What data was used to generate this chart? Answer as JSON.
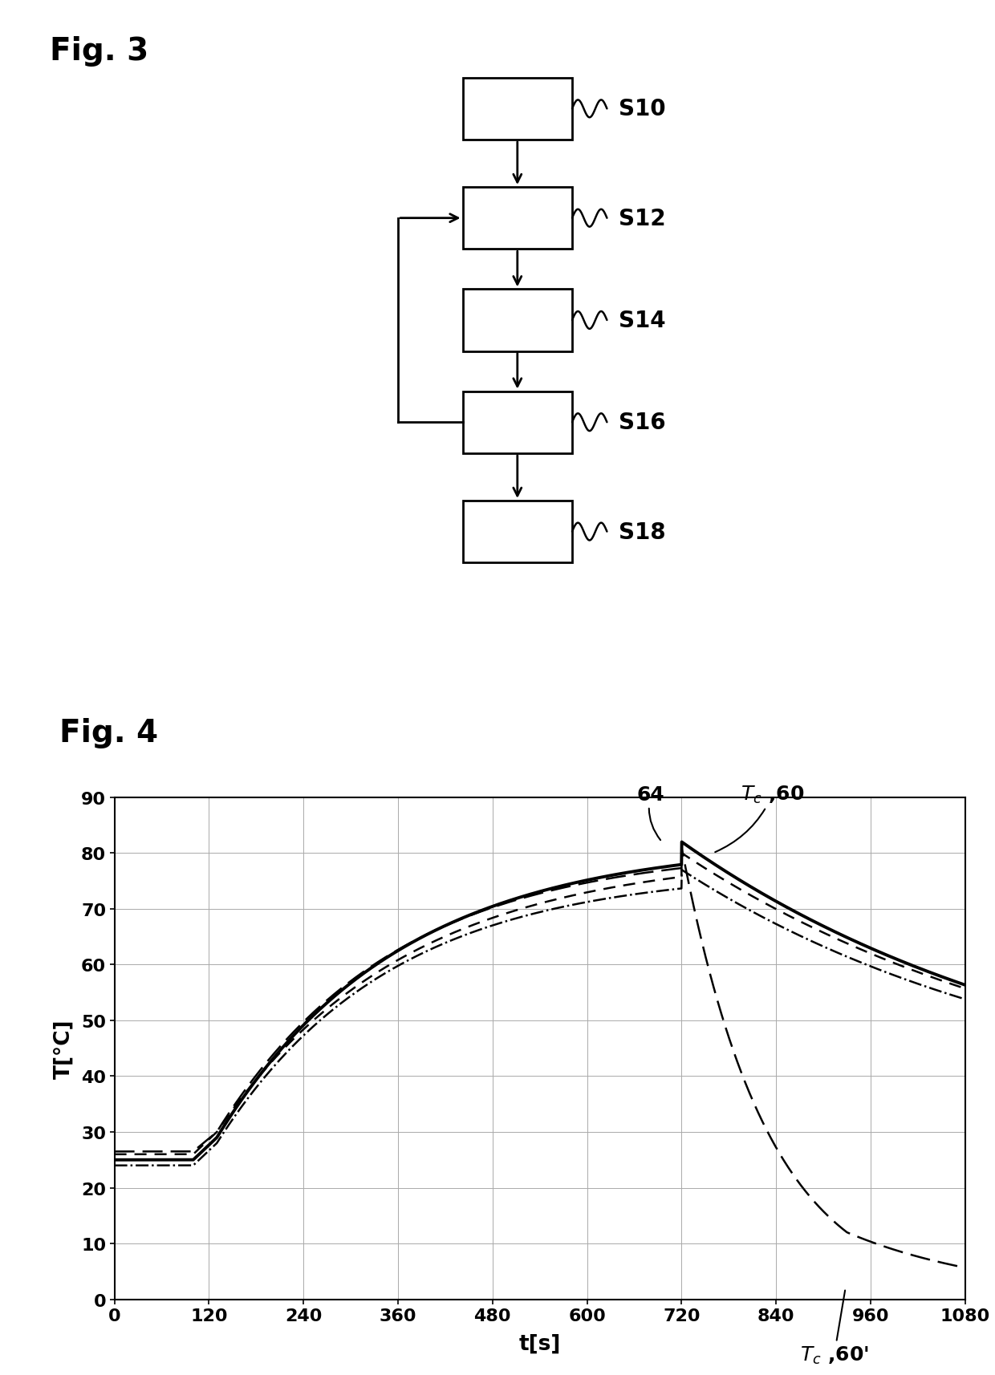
{
  "fig3_title": "Fig. 3",
  "fig4_title": "Fig. 4",
  "flowchart_boxes": [
    "S10",
    "S12",
    "S14",
    "S16",
    "S18"
  ],
  "graph_xlabel": "t[s]",
  "graph_ylabel": "T[°C]",
  "xlim": [
    0,
    1080
  ],
  "ylim": [
    0,
    90
  ],
  "xticks": [
    0,
    120,
    240,
    360,
    480,
    600,
    720,
    840,
    960,
    1080
  ],
  "yticks": [
    0,
    10,
    20,
    30,
    40,
    50,
    60,
    70,
    80,
    90
  ],
  "bg_color": "#ffffff",
  "line_color": "#000000"
}
